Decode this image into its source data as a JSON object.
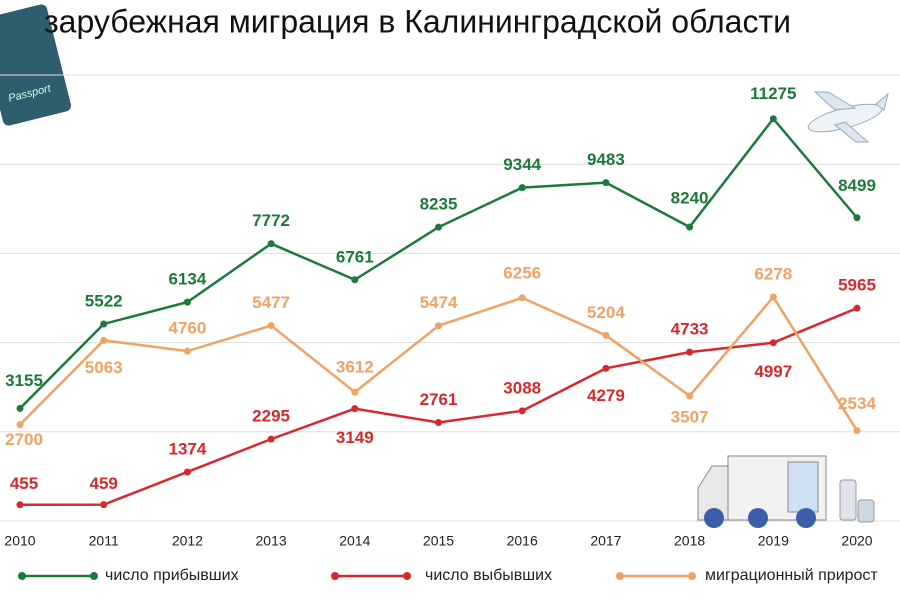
{
  "chart_data": {
    "type": "line",
    "title": "зарубежная миграция в Калининградской области",
    "categories": [
      "2010",
      "2011",
      "2012",
      "2013",
      "2014",
      "2015",
      "2016",
      "2017",
      "2018",
      "2019",
      "2020"
    ],
    "series": [
      {
        "name": "число прибывших",
        "color": "#1b7a3c",
        "values": [
          3155,
          5522,
          6134,
          7772,
          6761,
          8235,
          9344,
          9483,
          8240,
          11275,
          8499
        ]
      },
      {
        "name": "число выбывших",
        "color": "#d8282d",
        "values": [
          455,
          459,
          1374,
          2295,
          3149,
          2761,
          3088,
          4279,
          4733,
          4997,
          5965
        ]
      },
      {
        "name": "миграционный прирост",
        "color": "#f0a262",
        "values": [
          2700,
          5063,
          4760,
          5477,
          3612,
          5474,
          6256,
          5204,
          3507,
          6278,
          2534
        ]
      }
    ],
    "ylim": [
      0,
      12500
    ],
    "yticks": [
      0,
      2500,
      5000,
      7500,
      10000,
      12500
    ],
    "grid": true
  }
}
